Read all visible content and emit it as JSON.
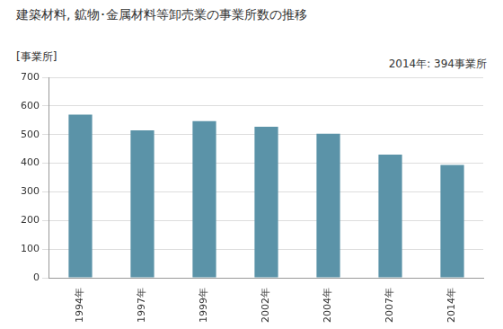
{
  "chart_data": {
    "type": "bar",
    "title": "建築材料, 鉱物･金属材料等卸売業の事業所数の推移",
    "y_label": "[事業所]",
    "annotation": "2014年: 394事業所",
    "categories": [
      "1994年",
      "1997年",
      "1999年",
      "2002年",
      "2004年",
      "2007年",
      "2014年"
    ],
    "values": [
      570,
      515,
      547,
      527,
      503,
      430,
      394
    ],
    "color": "#5b93a8",
    "ylim": [
      0,
      700
    ],
    "yticks": [
      0,
      100,
      200,
      300,
      400,
      500,
      600,
      700
    ],
    "grid": true
  }
}
